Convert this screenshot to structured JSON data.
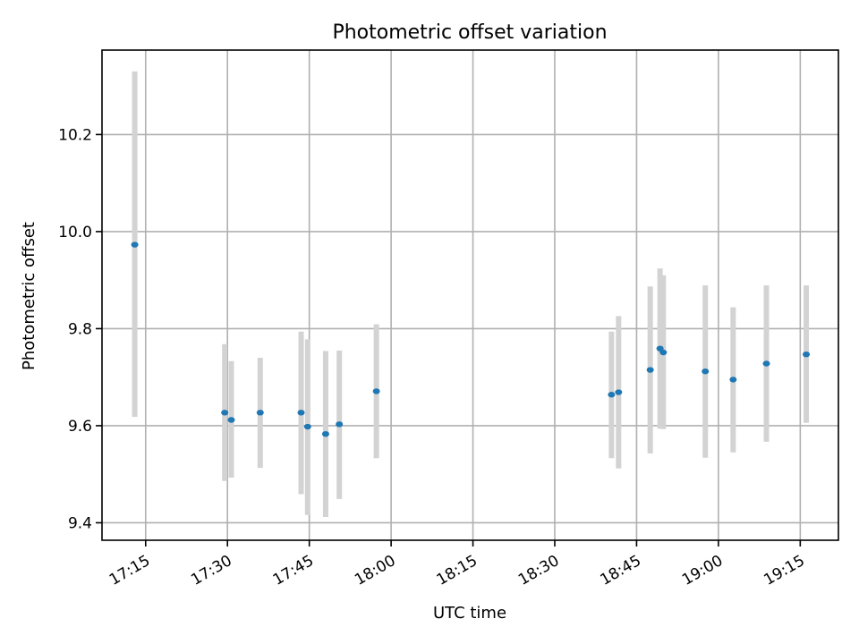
{
  "chart_data": {
    "type": "scatter",
    "title": "Photometric offset variation",
    "xlabel": "UTC time",
    "ylabel": "Photometric offset",
    "grid": true,
    "x_ticks": [
      {
        "time": "17:15",
        "label": "17:15"
      },
      {
        "time": "17:30",
        "label": "17:30"
      },
      {
        "time": "17:45",
        "label": "17:45"
      },
      {
        "time": "18:00",
        "label": "18:00"
      },
      {
        "time": "18:15",
        "label": "18:15"
      },
      {
        "time": "18:30",
        "label": "18:30"
      },
      {
        "time": "18:45",
        "label": "18:45"
      },
      {
        "time": "19:00",
        "label": "19:00"
      },
      {
        "time": "19:15",
        "label": "19:15"
      }
    ],
    "y_ticks": [
      {
        "value": 9.4,
        "label": "9.4"
      },
      {
        "value": 9.6,
        "label": "9.6"
      },
      {
        "value": 9.8,
        "label": "9.8"
      },
      {
        "value": 10.0,
        "label": "10.0"
      },
      {
        "value": 10.2,
        "label": "10.2"
      }
    ],
    "xlim": [
      "17:07",
      "19:22"
    ],
    "ylim": [
      9.364,
      10.374
    ],
    "series": [
      {
        "name": "offset",
        "color": "#1f77b4",
        "errorbar_color": "#d3d3d3",
        "points": [
          {
            "time": "17:13",
            "value": 9.973,
            "low": 9.618,
            "high": 10.33
          },
          {
            "time": "17:29.5",
            "value": 9.627,
            "low": 9.486,
            "high": 9.768
          },
          {
            "time": "17:30.7",
            "value": 9.612,
            "low": 9.493,
            "high": 9.733
          },
          {
            "time": "17:36",
            "value": 9.627,
            "low": 9.513,
            "high": 9.74
          },
          {
            "time": "17:43.5",
            "value": 9.627,
            "low": 9.459,
            "high": 9.794
          },
          {
            "time": "17:44.7",
            "value": 9.598,
            "low": 9.416,
            "high": 9.778
          },
          {
            "time": "17:48",
            "value": 9.583,
            "low": 9.412,
            "high": 9.754
          },
          {
            "time": "17:50.5",
            "value": 9.603,
            "low": 9.449,
            "high": 9.755
          },
          {
            "time": "17:57.3",
            "value": 9.671,
            "low": 9.533,
            "high": 9.809
          },
          {
            "time": "18:40.4",
            "value": 9.664,
            "low": 9.533,
            "high": 9.794
          },
          {
            "time": "18:41.7",
            "value": 9.669,
            "low": 9.512,
            "high": 9.826
          },
          {
            "time": "18:47.5",
            "value": 9.715,
            "low": 9.543,
            "high": 9.887
          },
          {
            "time": "18:49.3",
            "value": 9.759,
            "low": 9.594,
            "high": 9.924
          },
          {
            "time": "18:49.9",
            "value": 9.751,
            "low": 9.593,
            "high": 9.91
          },
          {
            "time": "18:57.6",
            "value": 9.712,
            "low": 9.534,
            "high": 9.889
          },
          {
            "time": "19:02.7",
            "value": 9.695,
            "low": 9.545,
            "high": 9.844
          },
          {
            "time": "19:08.8",
            "value": 9.728,
            "low": 9.567,
            "high": 9.889
          },
          {
            "time": "19:16.1",
            "value": 9.747,
            "low": 9.606,
            "high": 9.889
          }
        ]
      }
    ]
  }
}
